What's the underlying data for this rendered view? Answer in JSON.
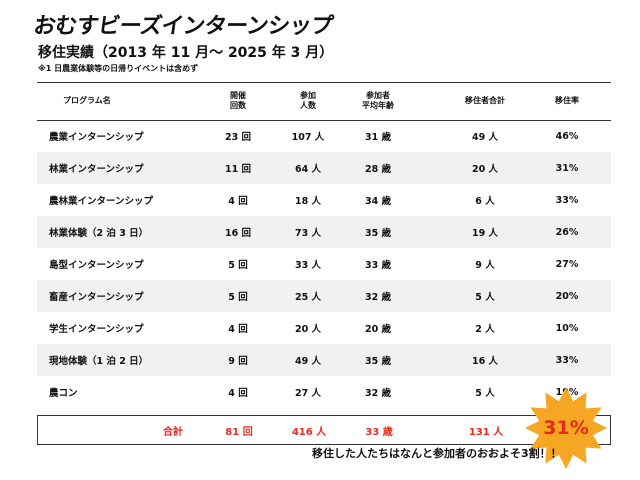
{
  "header": {
    "title": "おむすビーズインターンシップ",
    "subtitle": "移住実績（2013 年 11 月～ 2025 年 3 月）",
    "note": "※1 日農業体験等の日帰りイベントは含めず"
  },
  "table": {
    "columns": {
      "program": "プログラム名",
      "count_1": "開催",
      "count_2": "回数",
      "people_1": "参加",
      "people_2": "人数",
      "age_1": "参加者",
      "age_2": "平均年齢",
      "moved": "移住者合計",
      "rate": "移住率"
    },
    "rows": [
      {
        "program": "農業インターンシップ",
        "count": "23 回",
        "people": "107 人",
        "age": "31 歳",
        "moved": "49 人",
        "rate": "46%"
      },
      {
        "program": "林業インターンシップ",
        "count": "11 回",
        "people": "64 人",
        "age": "28 歳",
        "moved": "20 人",
        "rate": "31%"
      },
      {
        "program": "農林業インターンシップ",
        "count": "4 回",
        "people": "18 人",
        "age": "34 歳",
        "moved": "6 人",
        "rate": "33%"
      },
      {
        "program": "林業体験（2 泊 3 日）",
        "count": "16 回",
        "people": "73 人",
        "age": "35 歳",
        "moved": "19 人",
        "rate": "26%"
      },
      {
        "program": "島型インターンシップ",
        "count": "5 回",
        "people": "33 人",
        "age": "33 歳",
        "moved": "9 人",
        "rate": "27%"
      },
      {
        "program": "畜産インターンシップ",
        "count": "5 回",
        "people": "25 人",
        "age": "32 歳",
        "moved": "5 人",
        "rate": "20%"
      },
      {
        "program": "学生インターンシップ",
        "count": "4 回",
        "people": "20 人",
        "age": "20 歳",
        "moved": "2 人",
        "rate": "10%"
      },
      {
        "program": "現地体験（1 泊 2 日）",
        "count": "9 回",
        "people": "49 人",
        "age": "35 歳",
        "moved": "16 人",
        "rate": "33%"
      },
      {
        "program": "農コン",
        "count": "4 回",
        "people": "27 人",
        "age": "32 歳",
        "moved": "5 人",
        "rate": "19%"
      }
    ],
    "total": {
      "label": "合計",
      "count": "81 回",
      "people": "416 人",
      "age": "33 歳",
      "moved": "131 人",
      "rate": "31%"
    }
  },
  "footer": "移住した人たちはなんと参加者のおおよそ3割！！",
  "colors": {
    "accent": "#e42b1d",
    "burst": "#f5a623",
    "row_alt": "#f1f1f1"
  }
}
